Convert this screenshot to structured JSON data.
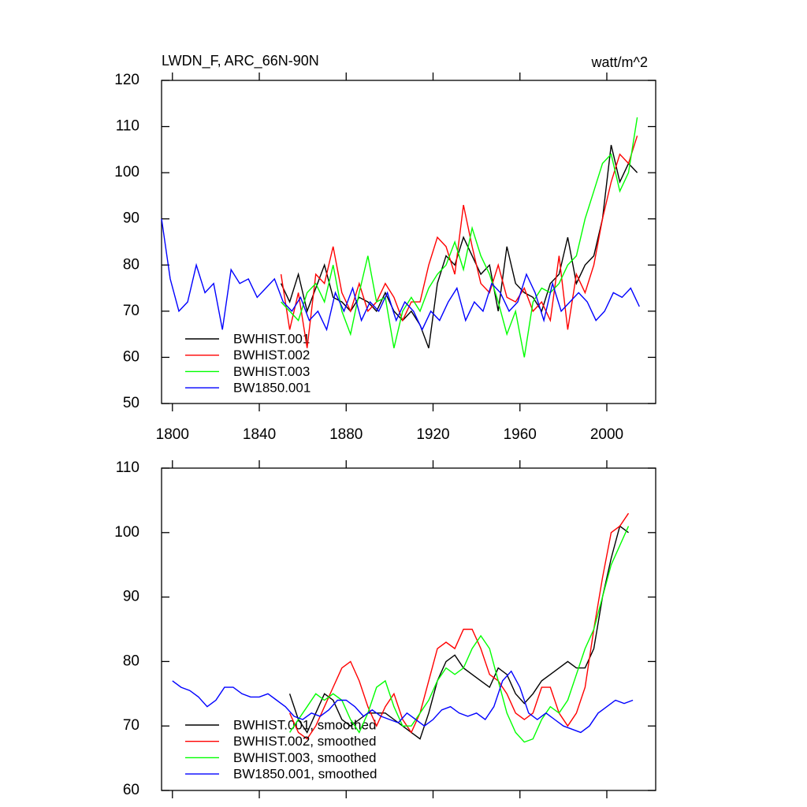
{
  "chart_data": [
    {
      "type": "line",
      "title": "LWDN_F, ARC_66N-90N",
      "units": "watt/m^2",
      "xlim": [
        1795,
        2022.5
      ],
      "xticks": [
        1800,
        1840,
        1880,
        1920,
        1960,
        2000
      ],
      "ylim": [
        50,
        120
      ],
      "yticks": [
        50,
        60,
        70,
        80,
        90,
        100,
        110,
        120
      ],
      "series": [
        {
          "name": "BWHIST.001",
          "color": "#000000",
          "x": [
            1850,
            1854,
            1858,
            1862,
            1866,
            1870,
            1874,
            1878,
            1882,
            1886,
            1890,
            1894,
            1898,
            1902,
            1906,
            1910,
            1914,
            1918,
            1922,
            1926,
            1930,
            1934,
            1938,
            1942,
            1946,
            1950,
            1954,
            1958,
            1962,
            1966,
            1970,
            1974,
            1978,
            1982,
            1986,
            1990,
            1994,
            1998,
            2002,
            2006,
            2010,
            2014
          ],
          "values": [
            76,
            72,
            78,
            70,
            75,
            80,
            73,
            72,
            70,
            73,
            72,
            70,
            74,
            70,
            68,
            70,
            67,
            62,
            76,
            82,
            80,
            86,
            82,
            78,
            80,
            70,
            84,
            76,
            74,
            73,
            70,
            76,
            78,
            86,
            76,
            80,
            82,
            90,
            106,
            98,
            102,
            100
          ]
        },
        {
          "name": "BWHIST.002",
          "color": "#ff0000",
          "x": [
            1850,
            1854,
            1858,
            1862,
            1866,
            1870,
            1874,
            1878,
            1882,
            1886,
            1890,
            1894,
            1898,
            1902,
            1906,
            1910,
            1914,
            1918,
            1922,
            1926,
            1930,
            1934,
            1938,
            1942,
            1946,
            1950,
            1954,
            1958,
            1962,
            1966,
            1970,
            1974,
            1978,
            1982,
            1986,
            1990,
            1994,
            1998,
            2002,
            2006,
            2010,
            2014
          ],
          "values": [
            78,
            66,
            74,
            62,
            78,
            76,
            84,
            74,
            70,
            76,
            70,
            72,
            76,
            73,
            68,
            72,
            72,
            80,
            86,
            84,
            78,
            93,
            84,
            76,
            74,
            80,
            73,
            72,
            75,
            70,
            72,
            68,
            82,
            66,
            78,
            74,
            80,
            90,
            98,
            104,
            102,
            108
          ]
        },
        {
          "name": "BWHIST.003",
          "color": "#00ff00",
          "x": [
            1850,
            1854,
            1858,
            1862,
            1866,
            1870,
            1874,
            1878,
            1882,
            1886,
            1890,
            1894,
            1898,
            1902,
            1906,
            1910,
            1914,
            1918,
            1922,
            1926,
            1930,
            1934,
            1938,
            1942,
            1946,
            1950,
            1954,
            1958,
            1962,
            1966,
            1970,
            1974,
            1978,
            1982,
            1986,
            1990,
            1994,
            1998,
            2002,
            2006,
            2010,
            2014
          ],
          "values": [
            72,
            70,
            68,
            74,
            76,
            72,
            80,
            70,
            65,
            74,
            82,
            72,
            73,
            62,
            70,
            73,
            70,
            75,
            78,
            80,
            85,
            79,
            88,
            82,
            78,
            72,
            65,
            70,
            60,
            72,
            75,
            74,
            76,
            80,
            82,
            90,
            96,
            102,
            104,
            96,
            100,
            112
          ]
        },
        {
          "name": "BW1850.001",
          "color": "#0000ff",
          "x": [
            1795,
            1799,
            1803,
            1807,
            1811,
            1815,
            1819,
            1823,
            1827,
            1831,
            1835,
            1839,
            1843,
            1847,
            1851,
            1855,
            1859,
            1863,
            1867,
            1871,
            1875,
            1879,
            1883,
            1887,
            1891,
            1895,
            1899,
            1903,
            1907,
            1911,
            1915,
            1919,
            1923,
            1927,
            1931,
            1935,
            1939,
            1943,
            1947,
            1951,
            1955,
            1959,
            1963,
            1967,
            1971,
            1975,
            1979,
            1983,
            1987,
            1991,
            1995,
            1999,
            2003,
            2007,
            2011,
            2015
          ],
          "values": [
            90,
            77,
            70,
            72,
            80,
            74,
            76,
            66,
            79,
            76,
            77,
            73,
            75,
            77,
            72,
            70,
            73,
            68,
            70,
            66,
            74,
            70,
            75,
            68,
            72,
            70,
            74,
            68,
            72,
            70,
            66,
            70,
            68,
            72,
            75,
            68,
            72,
            70,
            76,
            74,
            70,
            72,
            78,
            74,
            68,
            76,
            70,
            72,
            74,
            72,
            68,
            70,
            74,
            73,
            75,
            71
          ]
        }
      ]
    },
    {
      "type": "line",
      "xlim": [
        1795,
        2022.5
      ],
      "xticks": [
        1800,
        1840,
        1880,
        1920,
        1960,
        2000
      ],
      "ylim": [
        60,
        110
      ],
      "yticks": [
        60,
        70,
        80,
        90,
        100,
        110
      ],
      "series": [
        {
          "name": "BWHIST.001, smoothed",
          "color": "#000000",
          "x": [
            1854,
            1858,
            1862,
            1866,
            1870,
            1874,
            1878,
            1882,
            1886,
            1890,
            1894,
            1898,
            1902,
            1906,
            1910,
            1914,
            1918,
            1922,
            1926,
            1930,
            1934,
            1938,
            1942,
            1946,
            1950,
            1954,
            1958,
            1962,
            1966,
            1970,
            1974,
            1978,
            1982,
            1986,
            1990,
            1994,
            1998,
            2002,
            2006,
            2010
          ],
          "values": [
            75,
            71,
            69,
            72,
            75,
            74,
            71,
            70,
            71,
            72,
            72,
            72,
            71,
            70,
            69,
            68,
            72,
            77,
            80,
            81,
            79,
            78,
            77,
            76,
            79,
            78,
            75,
            73.5,
            75,
            77,
            78,
            79,
            80,
            79,
            79,
            82,
            90,
            96,
            101,
            100
          ]
        },
        {
          "name": "BWHIST.002, smoothed",
          "color": "#ff0000",
          "x": [
            1854,
            1858,
            1862,
            1866,
            1870,
            1874,
            1878,
            1882,
            1886,
            1890,
            1894,
            1898,
            1902,
            1906,
            1910,
            1914,
            1918,
            1922,
            1926,
            1930,
            1934,
            1938,
            1942,
            1946,
            1950,
            1954,
            1958,
            1962,
            1966,
            1970,
            1974,
            1978,
            1982,
            1986,
            1990,
            1994,
            1998,
            2002,
            2006,
            2010
          ],
          "values": [
            72,
            69,
            68,
            70,
            73,
            76,
            79,
            80,
            77,
            73,
            70,
            73,
            75,
            71,
            69,
            72,
            77,
            82,
            83,
            82,
            85,
            85,
            82,
            78,
            77,
            75,
            72,
            71,
            72,
            76,
            76,
            72,
            70,
            72,
            76,
            85,
            93,
            100,
            101,
            103
          ]
        },
        {
          "name": "BWHIST.003, smoothed",
          "color": "#00ff00",
          "x": [
            1854,
            1858,
            1862,
            1866,
            1870,
            1874,
            1878,
            1882,
            1886,
            1890,
            1894,
            1898,
            1902,
            1906,
            1910,
            1914,
            1918,
            1922,
            1926,
            1930,
            1934,
            1938,
            1942,
            1946,
            1950,
            1954,
            1958,
            1962,
            1966,
            1970,
            1974,
            1978,
            1982,
            1986,
            1990,
            1994,
            1998,
            2002,
            2006,
            2010
          ],
          "values": [
            69,
            71,
            73,
            75,
            74,
            75,
            74,
            71,
            69,
            72,
            76,
            77,
            73,
            70,
            70,
            72,
            74,
            77,
            79,
            78,
            79,
            82,
            84,
            82,
            77,
            72,
            69,
            67.5,
            68,
            71,
            73,
            72,
            74,
            78,
            82,
            85,
            90,
            95,
            98,
            101
          ]
        },
        {
          "name": "BW1850.001, smoothed",
          "color": "#0000ff",
          "x": [
            1800,
            1804,
            1808,
            1812,
            1816,
            1820,
            1824,
            1828,
            1832,
            1836,
            1840,
            1844,
            1848,
            1852,
            1856,
            1860,
            1864,
            1868,
            1872,
            1876,
            1880,
            1884,
            1888,
            1892,
            1896,
            1900,
            1904,
            1908,
            1912,
            1916,
            1920,
            1924,
            1928,
            1932,
            1936,
            1940,
            1944,
            1948,
            1952,
            1956,
            1960,
            1964,
            1968,
            1972,
            1976,
            1980,
            1984,
            1988,
            1992,
            1996,
            2000,
            2004,
            2008,
            2012
          ],
          "values": [
            77,
            76,
            75.5,
            74.5,
            73,
            74,
            76,
            76,
            75,
            74.5,
            74.5,
            75,
            74,
            73,
            71.5,
            71,
            72,
            71.5,
            72.5,
            74,
            74,
            73,
            71.5,
            72.5,
            71.5,
            71,
            70.5,
            72,
            71,
            70,
            71,
            72.5,
            73,
            72,
            71.5,
            72,
            71,
            73,
            77,
            78.5,
            76,
            72,
            71,
            72,
            71,
            70,
            69.5,
            69,
            70,
            72,
            73,
            74,
            73.5,
            74
          ]
        }
      ]
    }
  ]
}
